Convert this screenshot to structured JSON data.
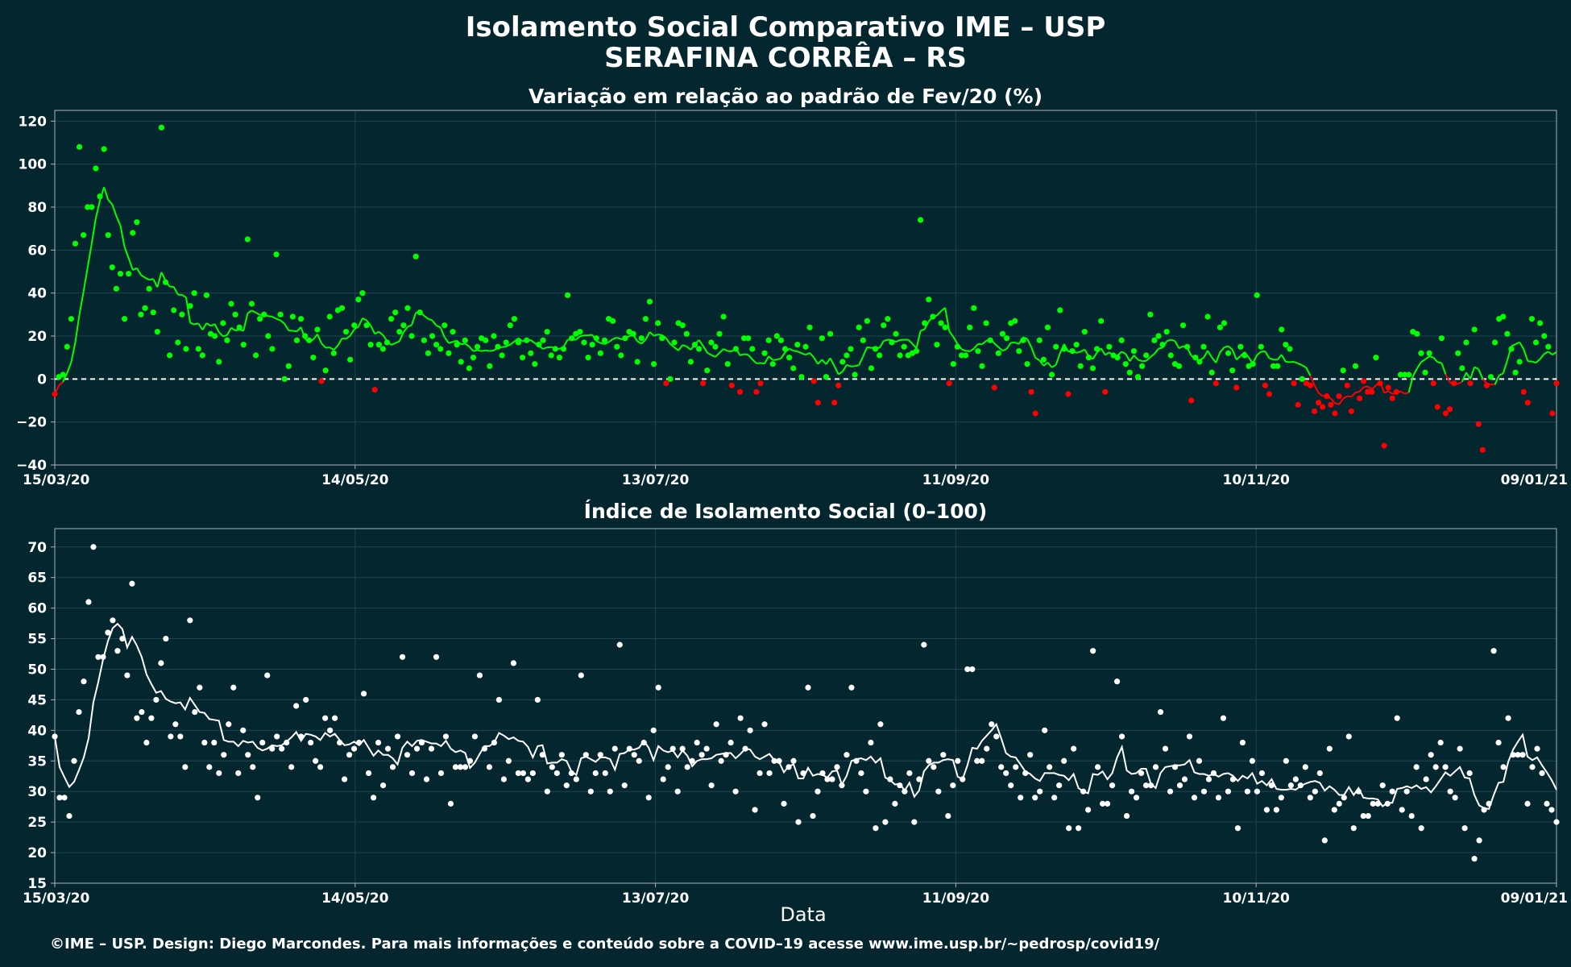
{
  "header": {
    "title_line1": "Isolamento Social Comparativo IME – USP",
    "title_line2": "SERAFINA CORRÊA – RS"
  },
  "x_axis": {
    "label": "Data",
    "tick_labels": [
      "15/03/20",
      "14/05/20",
      "13/07/20",
      "11/09/20",
      "10/11/20",
      "09/01/21"
    ],
    "range": [
      "2020-03-15",
      "2021-01-09"
    ]
  },
  "footer": {
    "credit": "©IME – USP. Design: Diego Marcondes. Para mais informações e conteúdo sobre a COVID–19 acesse www.ime.usp.br/~pedrosp/covid19/"
  },
  "colors": {
    "background": "#03262f",
    "panel_border": "#aab4b8",
    "grid": "#1f4450",
    "above_baseline": "#00ff00",
    "below_baseline": "#ff0000",
    "index_series": "#ffffff"
  },
  "chart_data": [
    {
      "type": "scatter",
      "title": "Variação em relação ao padrão de Fev/20 (%)",
      "xlabel": "",
      "ylabel": "",
      "ylim": [
        -40,
        125
      ],
      "yticks": [
        "120",
        "100",
        "80",
        "60",
        "40",
        "20",
        "0",
        "−20",
        "−40"
      ],
      "ytick_values": [
        120,
        100,
        80,
        60,
        40,
        20,
        0,
        -20,
        -40
      ],
      "baseline": 0,
      "grid": true,
      "series": [
        {
          "values": [
            -7,
            1,
            2,
            15,
            28,
            63,
            108,
            67,
            80,
            80,
            98,
            85,
            107,
            67,
            52,
            42,
            49,
            28,
            49,
            68,
            73,
            30,
            33,
            42,
            31,
            22,
            117,
            45,
            11,
            32,
            17,
            30,
            14,
            34,
            40,
            14,
            11,
            39,
            21,
            20,
            8,
            26,
            18,
            35,
            30,
            24,
            16,
            65,
            35,
            11,
            28,
            30,
            20,
            14,
            58,
            30,
            0,
            6,
            29,
            18,
            28,
            20,
            18,
            10,
            23,
            -1,
            4,
            29,
            12,
            32,
            33,
            22,
            9,
            25,
            37,
            40,
            25,
            16,
            -5,
            16,
            14,
            17,
            28,
            31,
            22,
            25,
            33,
            20,
            57,
            31,
            18,
            12,
            20,
            16,
            14,
            25,
            12,
            22,
            16,
            8,
            18,
            5,
            10,
            15,
            19,
            18,
            6,
            20,
            15,
            11,
            17,
            25,
            28,
            17,
            10,
            18,
            12,
            7,
            16,
            18,
            22,
            11,
            14,
            10,
            14,
            39,
            19,
            21,
            22,
            17,
            10,
            16,
            19,
            12,
            18,
            28,
            27,
            15,
            11,
            19,
            22,
            21,
            8,
            19,
            28,
            36,
            7,
            26,
            19,
            -2,
            0,
            17,
            26,
            25,
            21,
            8,
            16,
            14,
            -2,
            4,
            17,
            15,
            21,
            29,
            7,
            -3,
            14,
            -6,
            19,
            19,
            14,
            -6,
            -2,
            12,
            18,
            7,
            20,
            18,
            14,
            10,
            5,
            16,
            1,
            15,
            24,
            -1,
            -11,
            19,
            1,
            21,
            -11,
            -3,
            8,
            11,
            14,
            2,
            24,
            18,
            27,
            5,
            14,
            11,
            25,
            28,
            17,
            21,
            11,
            15,
            11,
            12,
            13,
            74,
            26,
            37,
            29,
            16,
            26,
            24,
            -2,
            7,
            15,
            11,
            11,
            24,
            33,
            13,
            6,
            26,
            18,
            -4,
            12,
            21,
            19,
            26,
            27,
            13,
            18,
            7,
            -6,
            -16,
            18,
            9,
            24,
            2,
            15,
            32,
            14,
            -7,
            13,
            16,
            6,
            22,
            10,
            5,
            14,
            27,
            -6,
            15,
            11,
            10,
            18,
            7,
            3,
            13,
            1,
            6,
            11,
            30,
            18,
            20,
            16,
            22,
            11,
            7,
            6,
            25,
            15,
            -10,
            10,
            8,
            15,
            29,
            3,
            -2,
            24,
            26,
            12,
            4,
            -4,
            15,
            11,
            6,
            7,
            39,
            15,
            -3,
            -7,
            6,
            6,
            23,
            16,
            14,
            -2,
            -12,
            0,
            -2,
            -3,
            -15,
            -11,
            -13,
            -8,
            -12,
            -16,
            -8,
            4,
            -3,
            -15,
            6,
            -9,
            -1,
            -6,
            -6,
            10,
            -2,
            -31,
            -4,
            -9,
            -6,
            2,
            2,
            2,
            22,
            21,
            12,
            3,
            12,
            -2,
            -13,
            19,
            -16,
            -14,
            -2,
            12,
            5,
            17,
            -2,
            23,
            -21,
            -33,
            -3,
            1,
            17,
            28,
            29,
            21,
            14,
            3,
            8,
            -6,
            -11,
            28,
            17,
            26,
            20,
            15,
            -16,
            -2
          ]
        }
      ]
    },
    {
      "type": "scatter",
      "title": "Índice de Isolamento Social (0–100)",
      "xlabel": "Data",
      "ylabel": "",
      "ylim": [
        15,
        73
      ],
      "yticks": [
        "70",
        "65",
        "60",
        "55",
        "50",
        "45",
        "40",
        "35",
        "30",
        "25",
        "20",
        "15"
      ],
      "ytick_values": [
        70,
        65,
        60,
        55,
        50,
        45,
        40,
        35,
        30,
        25,
        20,
        15
      ],
      "grid": true,
      "series": [
        {
          "values": [
            39,
            29,
            29,
            26,
            35,
            43,
            48,
            61,
            70,
            52,
            52,
            56,
            58,
            53,
            55,
            49,
            64,
            42,
            43,
            38,
            42,
            45,
            51,
            55,
            39,
            41,
            39,
            34,
            58,
            43,
            47,
            38,
            34,
            38,
            33,
            36,
            41,
            47,
            33,
            40,
            36,
            34,
            29,
            38,
            49,
            37,
            39,
            37,
            38,
            34,
            44,
            39,
            45,
            38,
            35,
            34,
            42,
            40,
            42,
            38,
            32,
            36,
            37,
            38,
            46,
            33,
            29,
            38,
            31,
            37,
            34,
            39,
            52,
            36,
            33,
            37,
            38,
            32,
            37,
            52,
            33,
            39,
            28,
            34,
            34,
            34,
            35,
            39,
            49,
            37,
            34,
            38,
            45,
            32,
            35,
            51,
            33,
            33,
            32,
            33,
            45,
            36,
            30,
            34,
            33,
            36,
            31,
            33,
            32,
            49,
            36,
            30,
            33,
            36,
            33,
            30,
            37,
            54,
            31,
            37,
            36,
            35,
            38,
            29,
            40,
            47,
            32,
            34,
            37,
            30,
            37,
            34,
            35,
            38,
            36,
            37,
            31,
            41,
            35,
            36,
            38,
            30,
            42,
            37,
            40,
            27,
            33,
            41,
            33,
            35,
            35,
            28,
            34,
            35,
            25,
            33,
            47,
            26,
            30,
            33,
            32,
            32,
            34,
            31,
            36,
            47,
            35,
            33,
            30,
            38,
            24,
            41,
            25,
            32,
            28,
            31,
            30,
            33,
            25,
            32,
            54,
            35,
            34,
            30,
            36,
            26,
            31,
            35,
            32,
            50,
            50,
            35,
            35,
            37,
            41,
            39,
            34,
            33,
            31,
            34,
            29,
            33,
            36,
            29,
            30,
            40,
            34,
            29,
            31,
            35,
            24,
            37,
            24,
            30,
            27,
            53,
            34,
            28,
            28,
            31,
            48,
            39,
            26,
            30,
            29,
            33,
            31,
            31,
            34,
            43,
            37,
            30,
            34,
            31,
            32,
            39,
            29,
            35,
            30,
            32,
            33,
            29,
            42,
            30,
            32,
            24,
            38,
            30,
            35,
            30,
            33,
            27,
            31,
            27,
            29,
            35,
            31,
            32,
            31,
            34,
            29,
            30,
            33,
            22,
            37,
            27,
            28,
            29,
            39,
            24,
            30,
            26,
            26,
            28,
            28,
            31,
            28,
            30,
            42,
            27,
            30,
            26,
            34,
            24,
            32,
            36,
            34,
            38,
            34,
            30,
            29,
            37,
            24,
            33,
            19,
            22,
            27,
            28,
            53,
            38,
            34,
            42,
            36,
            36,
            36,
            28,
            34,
            37,
            33,
            28,
            27,
            25
          ]
        }
      ]
    }
  ]
}
